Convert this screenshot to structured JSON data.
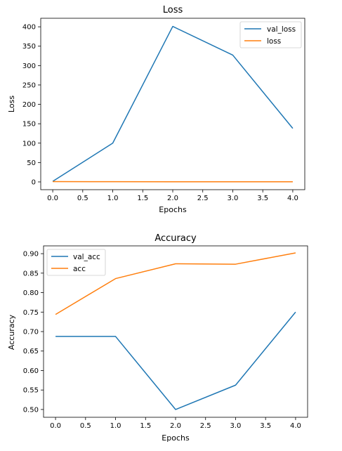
{
  "chart_data": [
    {
      "type": "line",
      "title": "Loss",
      "xlabel": "Epochs",
      "ylabel": "Loss",
      "x": [
        0,
        1,
        2,
        3,
        4
      ],
      "xlim": [
        -0.2,
        4.2
      ],
      "ylim": [
        -20,
        422
      ],
      "xticks": [
        0.0,
        0.5,
        1.0,
        1.5,
        2.0,
        2.5,
        3.0,
        3.5,
        4.0
      ],
      "xtick_labels": [
        "0.0",
        "0.5",
        "1.0",
        "1.5",
        "2.0",
        "2.5",
        "3.0",
        "3.5",
        "4.0"
      ],
      "yticks": [
        0,
        50,
        100,
        150,
        200,
        250,
        300,
        350,
        400
      ],
      "ytick_labels": [
        "0",
        "50",
        "100",
        "150",
        "200",
        "250",
        "300",
        "350",
        "400"
      ],
      "grid": false,
      "legend_position": "top-right",
      "series": [
        {
          "name": "val_loss",
          "color": "#1f77b4",
          "values": [
            1.5,
            100,
            401,
            327,
            138
          ]
        },
        {
          "name": "loss",
          "color": "#ff7f0e",
          "values": [
            0.9,
            0.5,
            0.4,
            0.35,
            0.3
          ]
        }
      ]
    },
    {
      "type": "line",
      "title": "Accuracy",
      "xlabel": "Epochs",
      "ylabel": "Accuracy",
      "x": [
        0,
        1,
        2,
        3,
        4
      ],
      "xlim": [
        -0.2,
        4.2
      ],
      "ylim": [
        0.48,
        0.92
      ],
      "xticks": [
        0.0,
        0.5,
        1.0,
        1.5,
        2.0,
        2.5,
        3.0,
        3.5,
        4.0
      ],
      "xtick_labels": [
        "0.0",
        "0.5",
        "1.0",
        "1.5",
        "2.0",
        "2.5",
        "3.0",
        "3.5",
        "4.0"
      ],
      "yticks": [
        0.5,
        0.55,
        0.6,
        0.65,
        0.7,
        0.75,
        0.8,
        0.85,
        0.9
      ],
      "ytick_labels": [
        "0.50",
        "0.55",
        "0.60",
        "0.65",
        "0.70",
        "0.75",
        "0.80",
        "0.85",
        "0.90"
      ],
      "grid": false,
      "legend_position": "top-left",
      "series": [
        {
          "name": "val_acc",
          "color": "#1f77b4",
          "values": [
            0.6875,
            0.6875,
            0.5,
            0.5625,
            0.75
          ]
        },
        {
          "name": "acc",
          "color": "#ff7f0e",
          "values": [
            0.744,
            0.836,
            0.874,
            0.873,
            0.902
          ]
        }
      ]
    }
  ]
}
